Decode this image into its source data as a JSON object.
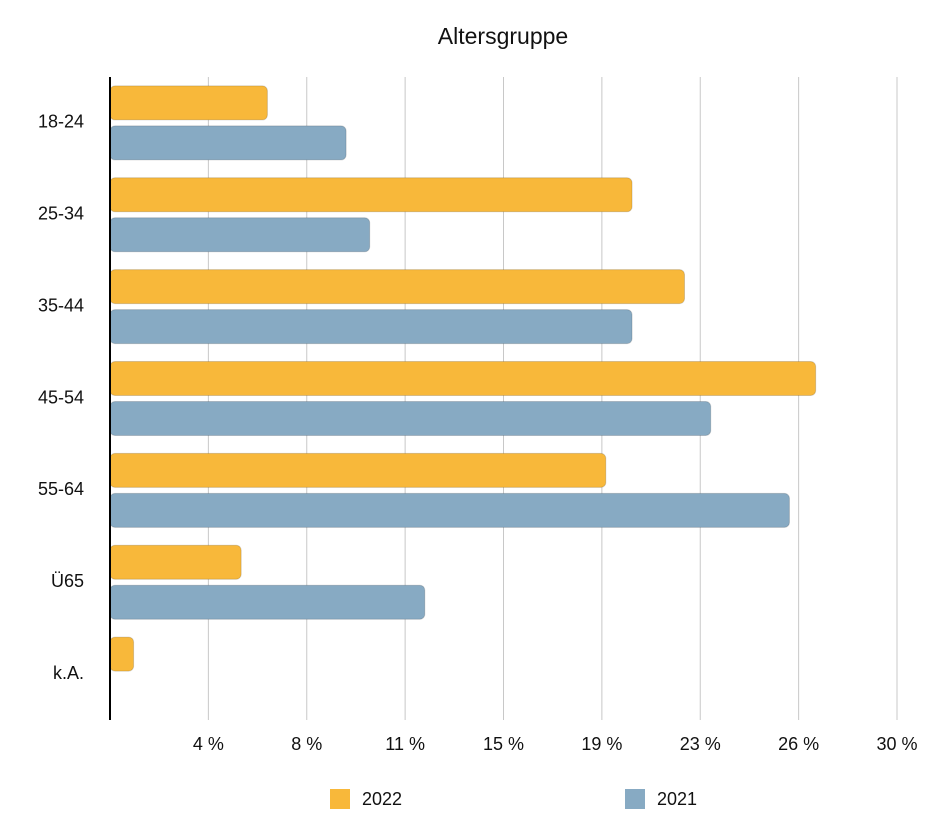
{
  "chart_data": {
    "type": "hbar",
    "title": "Altersgruppe",
    "categories": [
      "18-24",
      "25-34",
      "35-44",
      "45-54",
      "55-64",
      "Ü65",
      "k.A."
    ],
    "series": [
      {
        "name": "2022",
        "color": "#f8b83a",
        "values": [
          6.0,
          19.9,
          21.9,
          26.9,
          18.9,
          5.0,
          0.9
        ]
      },
      {
        "name": "2021",
        "color": "#87aac3",
        "values": [
          9.0,
          9.9,
          19.9,
          22.9,
          25.9,
          12.0,
          null
        ]
      }
    ],
    "xlim": [
      0,
      30
    ],
    "xticks": [
      {
        "value": 3.75,
        "label": "4 %"
      },
      {
        "value": 7.5,
        "label": "8 %"
      },
      {
        "value": 11.25,
        "label": "11 %"
      },
      {
        "value": 15,
        "label": "15 %"
      },
      {
        "value": 18.75,
        "label": "19 %"
      },
      {
        "value": 22.5,
        "label": "23 %"
      },
      {
        "value": 26.25,
        "label": "26 %"
      },
      {
        "value": 30,
        "label": "30 %"
      }
    ],
    "grid": true,
    "legend": "bottom"
  }
}
